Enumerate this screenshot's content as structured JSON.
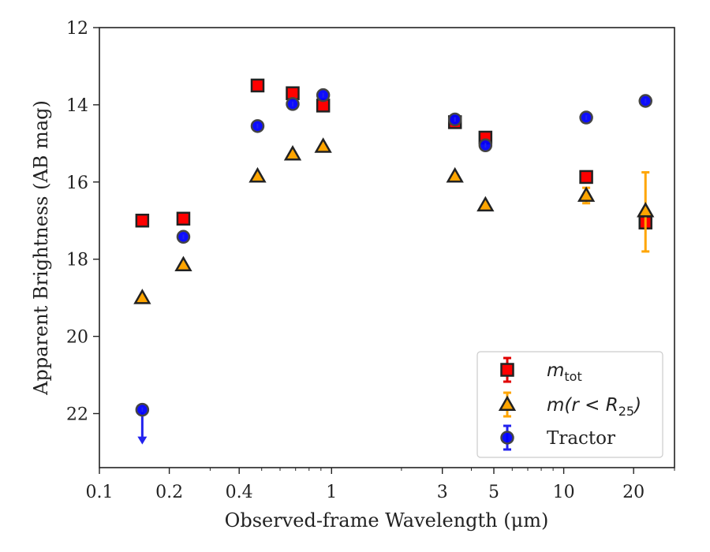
{
  "chart_data": {
    "type": "scatter",
    "title": "",
    "xlabel": "Observed-frame Wavelength (μm)",
    "ylabel": "Apparent Brightness (AB mag)",
    "xscale": "log",
    "xlim": [
      0.1,
      30
    ],
    "ylim": [
      23.4,
      12
    ],
    "y_inverted": true,
    "x_ticks": [
      {
        "value": 0.1,
        "label": "0.1"
      },
      {
        "value": 0.2,
        "label": "0.2"
      },
      {
        "value": 0.4,
        "label": "0.4"
      },
      {
        "value": 1,
        "label": "1"
      },
      {
        "value": 3,
        "label": "3"
      },
      {
        "value": 5,
        "label": "5"
      },
      {
        "value": 10,
        "label": "10"
      },
      {
        "value": 20,
        "label": "20"
      }
    ],
    "y_ticks": [
      {
        "value": 12,
        "label": "12"
      },
      {
        "value": 14,
        "label": "14"
      },
      {
        "value": 16,
        "label": "16"
      },
      {
        "value": 18,
        "label": "18"
      },
      {
        "value": 20,
        "label": "20"
      },
      {
        "value": 22,
        "label": "22"
      }
    ],
    "grid": false,
    "legend_position": "bottom-right",
    "series": [
      {
        "name_main": "m",
        "name_sub": "tot",
        "marker": "square",
        "face_color": "#ff0000",
        "edge_color": "#222222",
        "error_color": "#e00000",
        "points": [
          {
            "x": 0.153,
            "y": 17.0
          },
          {
            "x": 0.23,
            "y": 16.95
          },
          {
            "x": 0.48,
            "y": 13.5
          },
          {
            "x": 0.68,
            "y": 13.7
          },
          {
            "x": 0.92,
            "y": 14.02
          },
          {
            "x": 3.4,
            "y": 14.45
          },
          {
            "x": 4.6,
            "y": 14.85
          },
          {
            "x": 12.5,
            "y": 15.87
          },
          {
            "x": 22.5,
            "y": 17.05,
            "yerr": 0.15
          }
        ]
      },
      {
        "name_main": "m(r < R",
        "name_sub": "25",
        "name_tail": ")",
        "marker": "triangle",
        "face_color": "#ffa500",
        "edge_color": "#222222",
        "error_color": "#ffa500",
        "points": [
          {
            "x": 0.153,
            "y": 19.0
          },
          {
            "x": 0.23,
            "y": 18.15
          },
          {
            "x": 0.48,
            "y": 15.85
          },
          {
            "x": 0.68,
            "y": 15.28
          },
          {
            "x": 0.92,
            "y": 15.08
          },
          {
            "x": 3.4,
            "y": 15.85
          },
          {
            "x": 4.6,
            "y": 16.6
          },
          {
            "x": 12.5,
            "y": 16.35,
            "yerr": 0.2
          },
          {
            "x": 22.5,
            "y": 16.75,
            "yerr_low": 1.0,
            "yerr_high": 1.05
          }
        ]
      },
      {
        "name_main": "Tractor",
        "marker": "circle",
        "face_color": "#0000ff",
        "edge_color": "#444444",
        "error_color": "#2222ee",
        "points": [
          {
            "x": 0.153,
            "y": 21.9,
            "upper_limit": true
          },
          {
            "x": 0.23,
            "y": 17.42
          },
          {
            "x": 0.48,
            "y": 14.55
          },
          {
            "x": 0.68,
            "y": 13.98
          },
          {
            "x": 0.92,
            "y": 13.75
          },
          {
            "x": 3.4,
            "y": 14.38
          },
          {
            "x": 4.6,
            "y": 15.05
          },
          {
            "x": 12.5,
            "y": 14.33
          },
          {
            "x": 22.5,
            "y": 13.9
          }
        ]
      }
    ]
  }
}
